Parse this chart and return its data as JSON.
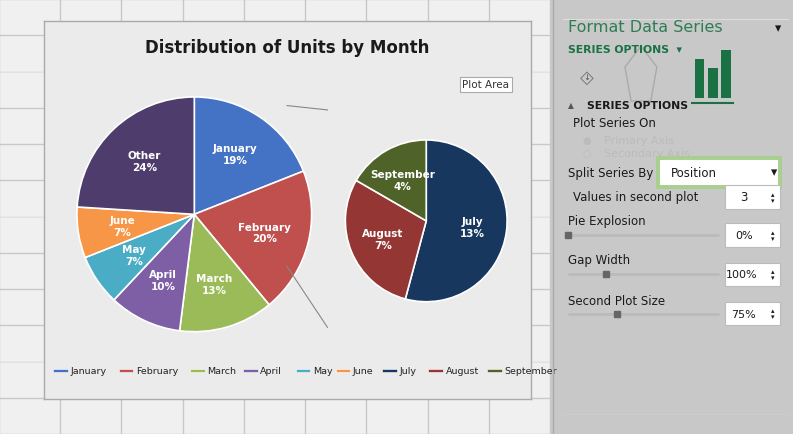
{
  "title": "Distribution of Units by Month",
  "outer_bg": "#c8c8c8",
  "chart_bg": "#ebebeb",
  "chart_border": "#999999",
  "grid_color": "#ffffff",
  "main_labels": [
    "January",
    "February",
    "March",
    "April",
    "May",
    "June",
    "Other"
  ],
  "main_values": [
    19,
    20,
    13,
    10,
    7,
    7,
    24
  ],
  "main_colors": [
    "#4472c4",
    "#c0504d",
    "#9bbb59",
    "#7e5fa6",
    "#4bacc6",
    "#f79646",
    "#4e3d6c"
  ],
  "sub_labels": [
    "July",
    "August",
    "September"
  ],
  "sub_values": [
    13,
    7,
    4
  ],
  "sub_colors": [
    "#17375e",
    "#943634",
    "#4f6228"
  ],
  "legend_labels": [
    "January",
    "February",
    "March",
    "April",
    "May",
    "June",
    "July",
    "August",
    "September"
  ],
  "legend_colors": [
    "#4472c4",
    "#c0504d",
    "#9bbb59",
    "#7e5fa6",
    "#4bacc6",
    "#f79646",
    "#17375e",
    "#943634",
    "#4f6228"
  ],
  "right_panel_bg": "#ffffff",
  "right_accent_color": "#1a7144",
  "right_title": "Format Data Series",
  "plot_area_label": "Plot Area",
  "label_fontsize": 7.5,
  "title_fontsize": 12
}
